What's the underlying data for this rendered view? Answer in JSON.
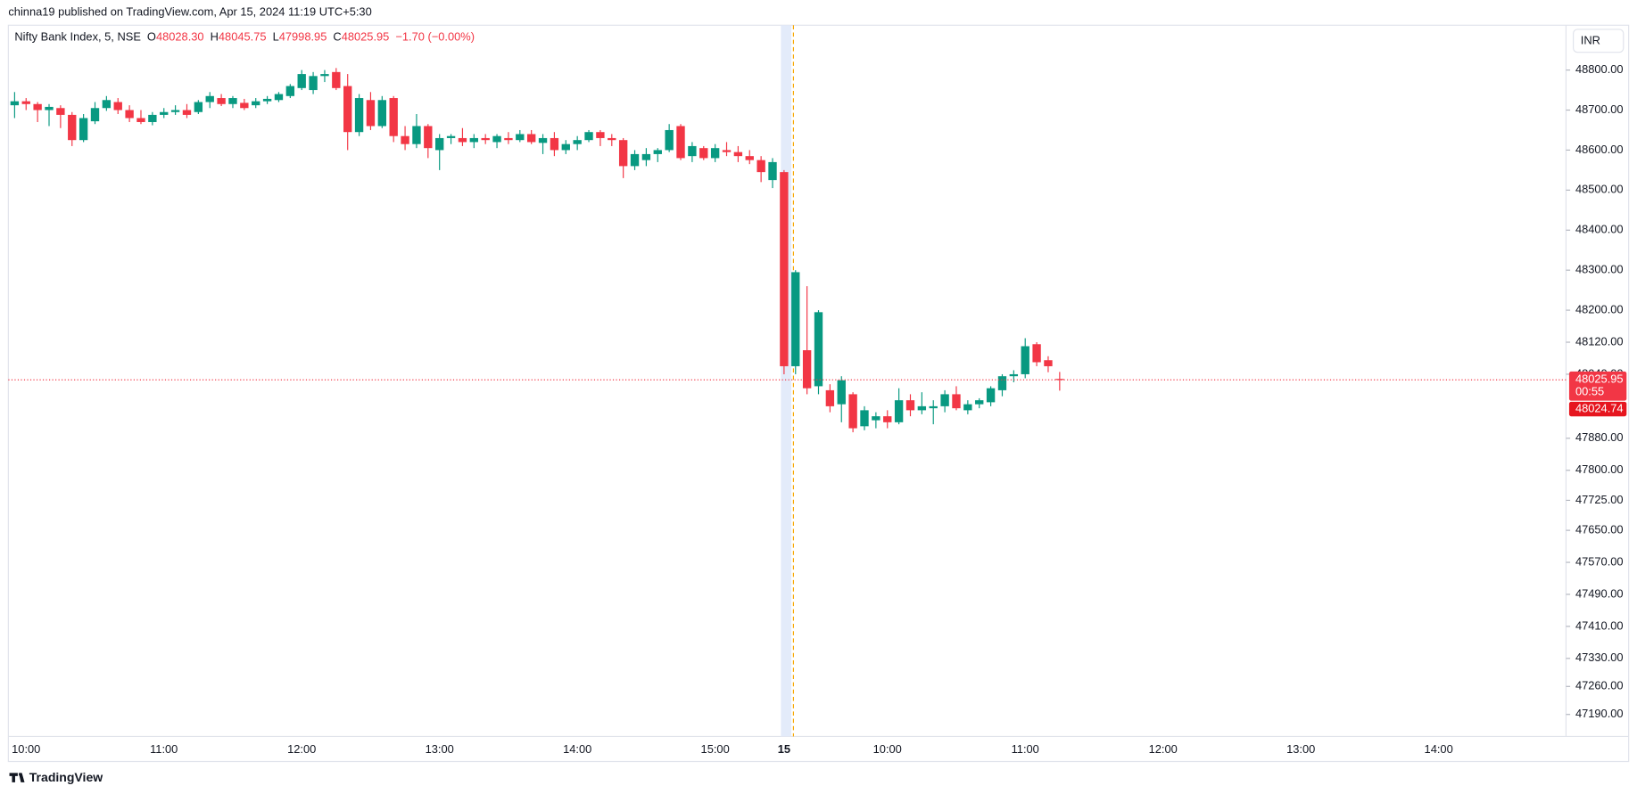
{
  "published": "chinna19 published on TradingView.com, Apr 15, 2024 11:19 UTC+5:30",
  "brand": "TradingView",
  "currency": "INR",
  "chart_data": {
    "type": "candlestick",
    "symbol": "Nifty Bank Index, 5, NSE",
    "ohlc_labels": [
      "O",
      "H",
      "L",
      "C"
    ],
    "header_values": [
      "48028.30",
      "48045.75",
      "47998.95",
      "48025.95"
    ],
    "change": "−1.70 (−0.00%)",
    "price_tags": [
      "48025.95",
      "00:55",
      "48024.74"
    ],
    "up_color": "#089981",
    "down_color": "#f23645",
    "grid": false,
    "ylim": [
      47135,
      48912
    ],
    "yticks": [
      {
        "value": 48800,
        "label": "48800.00"
      },
      {
        "value": 48700,
        "label": "48700.00"
      },
      {
        "value": 48600,
        "label": "48600.00"
      },
      {
        "value": 48500,
        "label": "48500.00"
      },
      {
        "value": 48400,
        "label": "48400.00"
      },
      {
        "value": 48300,
        "label": "48300.00"
      },
      {
        "value": 48200,
        "label": "48200.00"
      },
      {
        "value": 48120,
        "label": "48120.00"
      },
      {
        "value": 48040,
        "label": "48040.00"
      },
      {
        "value": 47880,
        "label": "47880.00"
      },
      {
        "value": 47800,
        "label": "47800.00"
      },
      {
        "value": 47725,
        "label": "47725.00"
      },
      {
        "value": 47650,
        "label": "47650.00"
      },
      {
        "value": 47570,
        "label": "47570.00"
      },
      {
        "value": 47490,
        "label": "47490.00"
      },
      {
        "value": 47410,
        "label": "47410.00"
      },
      {
        "value": 47330,
        "label": "47330.00"
      },
      {
        "value": 47260,
        "label": "47260.00"
      },
      {
        "value": 47190,
        "label": "47190.00"
      }
    ],
    "categories": [
      null,
      "10:00",
      null,
      null,
      null,
      null,
      null,
      null,
      null,
      null,
      null,
      null,
      null,
      "11:00",
      null,
      null,
      null,
      null,
      null,
      null,
      null,
      null,
      null,
      null,
      null,
      "12:00",
      null,
      null,
      null,
      null,
      null,
      null,
      null,
      null,
      null,
      null,
      null,
      "13:00",
      null,
      null,
      null,
      null,
      null,
      null,
      null,
      null,
      null,
      null,
      null,
      "14:00",
      null,
      null,
      null,
      null,
      null,
      null,
      null,
      null,
      null,
      null,
      null,
      "15:00",
      null,
      null,
      null,
      null,
      null,
      "15",
      null,
      null,
      null,
      null,
      null,
      null,
      null,
      null,
      "10:00",
      null,
      null,
      null,
      null,
      null,
      null,
      null,
      null,
      null,
      null,
      null,
      "11:00",
      null,
      null,
      null,
      null,
      null,
      null,
      null,
      null,
      null,
      null,
      null,
      "12:00",
      null,
      null,
      null,
      null,
      null,
      null,
      null,
      null,
      null,
      null,
      null,
      "13:00",
      null,
      null,
      null,
      null,
      null,
      null,
      null,
      null,
      null,
      null,
      null,
      "14:00"
    ],
    "open": [
      48712,
      48722,
      48715,
      48700,
      48705,
      48688,
      48625,
      48672,
      48705,
      48720,
      48700,
      48680,
      48670,
      48688,
      48695,
      48700,
      48695,
      48720,
      48730,
      48715,
      48718,
      48712,
      48722,
      48725,
      48735,
      48755,
      48750,
      48785,
      48795,
      48760,
      48645,
      48725,
      48660,
      48730,
      48635,
      48615,
      48660,
      48600,
      48630,
      48630,
      48620,
      48630,
      48620,
      48630,
      48625,
      48640,
      48618,
      48630,
      48600,
      48615,
      48625,
      48645,
      48630,
      48625,
      48560,
      48575,
      48590,
      48600,
      48660,
      48585,
      48605,
      48580,
      48600,
      48595,
      48585,
      48575,
      48525,
      48545,
      48060,
      48100,
      48010,
      48000,
      47965,
      47990,
      47910,
      47925,
      47935,
      47920,
      47975,
      47950,
      47955,
      47960,
      47990,
      47950,
      47965,
      47970,
      48000,
      48035,
      48040,
      48115,
      48075,
      48028.3,
      null,
      null,
      null,
      null,
      null,
      null,
      null,
      null,
      null,
      null,
      null,
      null,
      null,
      null,
      null,
      null,
      null,
      null,
      null,
      null,
      null,
      null,
      null,
      null,
      null,
      null,
      null,
      null,
      null,
      null,
      null,
      null,
      null
    ],
    "high": [
      48745,
      48730,
      48720,
      48715,
      48712,
      48695,
      48690,
      48720,
      48735,
      48730,
      48712,
      48700,
      48695,
      48705,
      48712,
      48715,
      48725,
      48745,
      48740,
      48735,
      48728,
      48730,
      48735,
      48745,
      48765,
      48800,
      48795,
      48800,
      48805,
      48790,
      48740,
      48745,
      48735,
      48735,
      48660,
      48690,
      48665,
      48640,
      48640,
      48655,
      48640,
      48640,
      48640,
      48645,
      48650,
      48650,
      48640,
      48645,
      48625,
      48635,
      48650,
      48650,
      48640,
      48630,
      48600,
      48605,
      48605,
      48665,
      48665,
      48620,
      48610,
      48615,
      48620,
      48610,
      48600,
      48585,
      48580,
      48550,
      48300,
      48260,
      48200,
      48015,
      48035,
      47995,
      47960,
      47945,
      47950,
      48005,
      47990,
      47995,
      47975,
      48000,
      48010,
      47975,
      47980,
      48010,
      48040,
      48050,
      48130,
      48120,
      48085,
      48045.75,
      null,
      null,
      null,
      null,
      null,
      null,
      null,
      null,
      null,
      null,
      null,
      null,
      null,
      null,
      null,
      null,
      null,
      null,
      null,
      null,
      null,
      null,
      null,
      null,
      null,
      null,
      null,
      null,
      null,
      null,
      null,
      null,
      null
    ],
    "low": [
      48680,
      48700,
      48670,
      48660,
      48655,
      48610,
      48620,
      48665,
      48698,
      48690,
      48670,
      48665,
      48662,
      48680,
      48688,
      48680,
      48690,
      48705,
      48710,
      48705,
      48700,
      48705,
      48715,
      48720,
      48730,
      48750,
      48740,
      48770,
      48750,
      48600,
      48635,
      48650,
      48655,
      48620,
      48600,
      48605,
      48580,
      48550,
      48615,
      48610,
      48605,
      48615,
      48605,
      48615,
      48620,
      48615,
      48590,
      48585,
      48590,
      48600,
      48620,
      48610,
      48610,
      48530,
      48550,
      48560,
      48570,
      48595,
      48575,
      48570,
      48575,
      48570,
      48585,
      48570,
      48565,
      48520,
      48505,
      48040,
      48040,
      47990,
      47990,
      47945,
      47920,
      47895,
      47900,
      47905,
      47905,
      47915,
      47935,
      47940,
      47915,
      47945,
      47950,
      47940,
      47955,
      47960,
      47985,
      48020,
      48030,
      48060,
      48045,
      47998.95,
      null,
      null,
      null,
      null,
      null,
      null,
      null,
      null,
      null,
      null,
      null,
      null,
      null,
      null,
      null,
      null,
      null,
      null,
      null,
      null,
      null,
      null,
      null,
      null,
      null,
      null,
      null,
      null,
      null,
      null,
      null,
      null,
      null
    ],
    "close": [
      48722,
      48715,
      48700,
      48708,
      48688,
      48625,
      48680,
      48705,
      48725,
      48700,
      48680,
      48670,
      48688,
      48695,
      48700,
      48688,
      48720,
      48735,
      48715,
      48730,
      48705,
      48722,
      48728,
      48740,
      48760,
      48790,
      48785,
      48790,
      48755,
      48645,
      48730,
      48660,
      48725,
      48635,
      48615,
      48660,
      48605,
      48630,
      48635,
      48620,
      48630,
      48625,
      48635,
      48625,
      48640,
      48620,
      48630,
      48600,
      48615,
      48625,
      48645,
      48630,
      48625,
      48560,
      48590,
      48590,
      48600,
      48650,
      48580,
      48610,
      48580,
      48605,
      48595,
      48585,
      48575,
      48545,
      48570,
      48060,
      48295,
      48005,
      48195,
      47960,
      48025,
      47905,
      47950,
      47935,
      47920,
      47975,
      47950,
      47960,
      47960,
      47990,
      47955,
      47965,
      47975,
      48005,
      48035,
      48040,
      48110,
      48070,
      48060,
      48025.95,
      null,
      null,
      null,
      null,
      null,
      null,
      null,
      null,
      null,
      null,
      null,
      null,
      null,
      null,
      null,
      null,
      null,
      null,
      null,
      null,
      null,
      null,
      null,
      null,
      null,
      null,
      null,
      null,
      null,
      null,
      null,
      null,
      null
    ]
  }
}
